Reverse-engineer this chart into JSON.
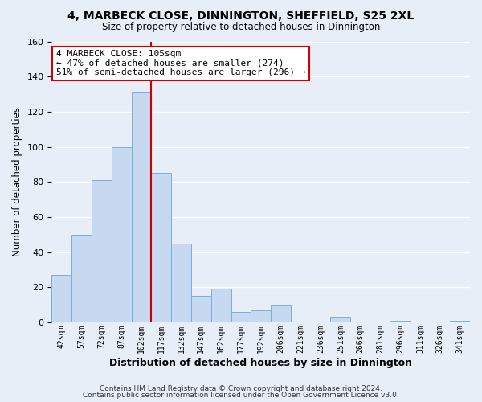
{
  "title": "4, MARBECK CLOSE, DINNINGTON, SHEFFIELD, S25 2XL",
  "subtitle": "Size of property relative to detached houses in Dinnington",
  "xlabel": "Distribution of detached houses by size in Dinnington",
  "ylabel": "Number of detached properties",
  "bar_labels": [
    "42sqm",
    "57sqm",
    "72sqm",
    "87sqm",
    "102sqm",
    "117sqm",
    "132sqm",
    "147sqm",
    "162sqm",
    "177sqm",
    "192sqm",
    "206sqm",
    "221sqm",
    "236sqm",
    "251sqm",
    "266sqm",
    "281sqm",
    "296sqm",
    "311sqm",
    "326sqm",
    "341sqm"
  ],
  "bar_values": [
    27,
    50,
    81,
    100,
    131,
    85,
    45,
    15,
    19,
    6,
    7,
    10,
    0,
    0,
    3,
    0,
    0,
    1,
    0,
    0,
    1
  ],
  "bar_color": "#c6d9f0",
  "bar_edge_color": "#7bafd4",
  "vline_x": 4,
  "vline_color": "#cc0000",
  "ylim": [
    0,
    160
  ],
  "yticks": [
    0,
    20,
    40,
    60,
    80,
    100,
    120,
    140,
    160
  ],
  "annotation_text": "4 MARBECK CLOSE: 105sqm\n← 47% of detached houses are smaller (274)\n51% of semi-detached houses are larger (296) →",
  "annotation_box_color": "#ffffff",
  "annotation_box_edge": "#cc0000",
  "footer_line1": "Contains HM Land Registry data © Crown copyright and database right 2024.",
  "footer_line2": "Contains public sector information licensed under the Open Government Licence v3.0.",
  "background_color": "#e8eef8",
  "plot_bg_color": "#e8eef8",
  "grid_color": "#ffffff"
}
